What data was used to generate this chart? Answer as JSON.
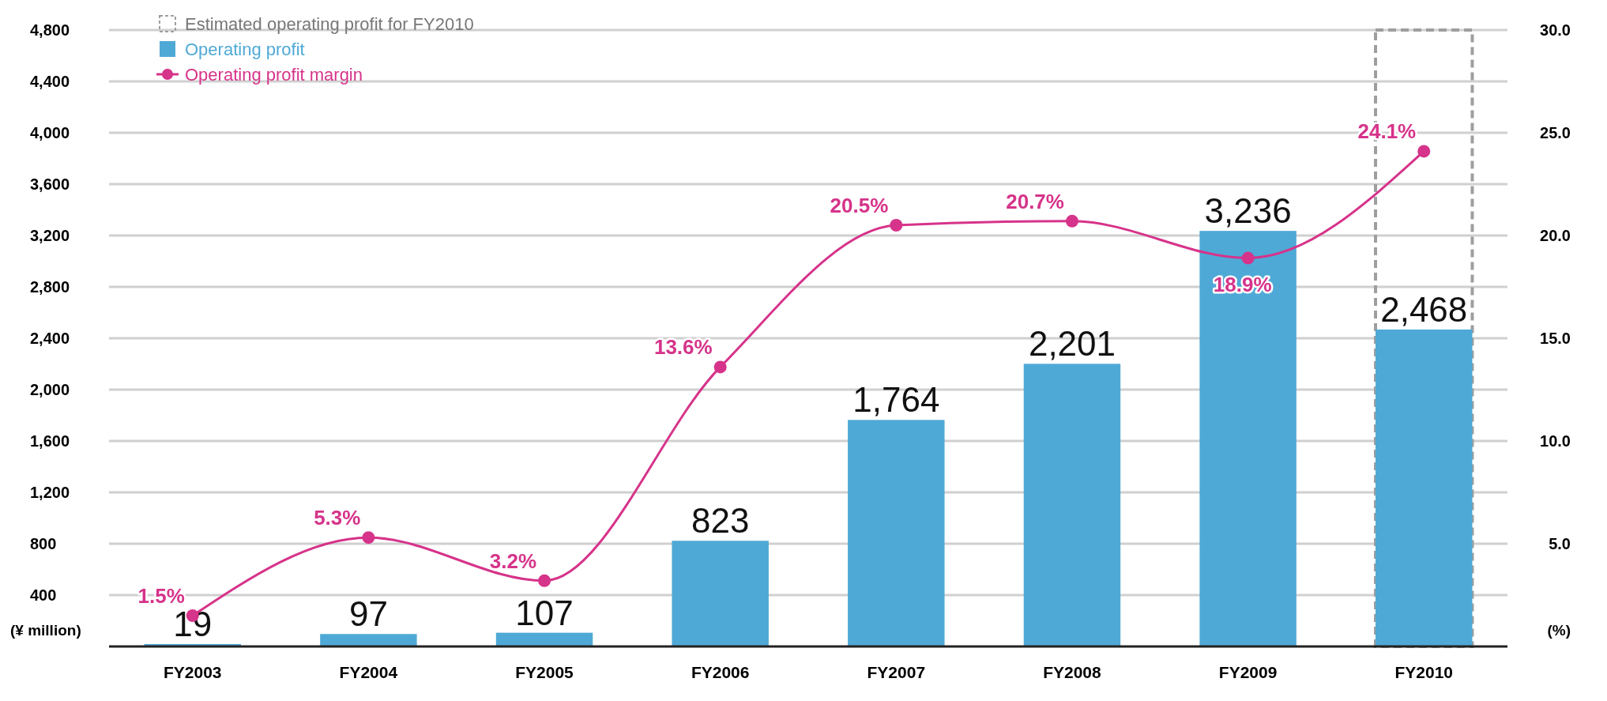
{
  "chart_data": {
    "type": "bar",
    "categories": [
      "FY2003",
      "FY2004",
      "FY2005",
      "FY2006",
      "FY2007",
      "FY2008",
      "FY2009",
      "FY2010"
    ],
    "ylabel": "(¥ million)",
    "y2label": "(%)",
    "ylim": [
      0,
      4800
    ],
    "yticks": [
      400,
      800,
      {
        "value": 1200,
        "label": "1,200"
      },
      {
        "value": 1600,
        "label": "1,600"
      },
      {
        "value": 2000,
        "label": "2,000"
      },
      {
        "value": 2400,
        "label": "2,400"
      },
      {
        "value": 2800,
        "label": "2,800"
      },
      {
        "value": 3200,
        "label": "3,200"
      },
      {
        "value": 3600,
        "label": "3,600"
      },
      {
        "value": 4000,
        "label": "4,000"
      },
      {
        "value": 4400,
        "label": "4,400"
      },
      {
        "value": 4800,
        "label": "4,800"
      }
    ],
    "y2lim": [
      0,
      30
    ],
    "y2ticks": [
      {
        "value": 5,
        "label": "5.0"
      },
      {
        "value": 10,
        "label": "10.0"
      },
      {
        "value": 15,
        "label": "15.0"
      },
      {
        "value": 20,
        "label": "20.0"
      },
      {
        "value": 25,
        "label": "25.0"
      },
      {
        "value": 30,
        "label": "30.0"
      }
    ],
    "grid": "y",
    "legend": "top left",
    "series": [
      {
        "name": "Estimated operating profit for FY2010",
        "color": "#9e9e9e",
        "line_style": "dashed",
        "values": [
          null,
          null,
          null,
          null,
          null,
          null,
          null,
          4800
        ]
      },
      {
        "name": "Operating profit",
        "color": "#4fa9d6",
        "values": [
          19,
          97,
          107,
          823,
          1764,
          2201,
          3236,
          2468
        ],
        "value_labels": [
          "19",
          "97",
          "107",
          "823",
          "1,764",
          "2,201",
          "3,236",
          "2,468"
        ]
      },
      {
        "name": "Operating profit margin",
        "type": "line",
        "axis": "y2",
        "color": "#d6338a",
        "marker": "circle",
        "values": [
          1.5,
          5.3,
          3.2,
          13.6,
          20.5,
          20.7,
          18.9,
          24.1
        ],
        "value_labels": [
          "1.5%",
          "5.3%",
          "3.2%",
          "13.6%",
          "20.5%",
          "20.7%",
          "18.9%",
          "24.1%"
        ]
      }
    ]
  }
}
